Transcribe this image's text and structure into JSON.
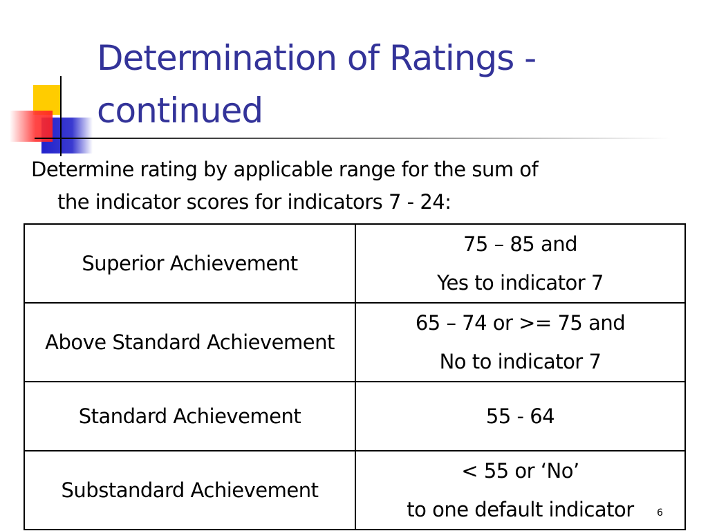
{
  "header": {
    "title_lines": [
      "Determination of Ratings -",
      "continued"
    ]
  },
  "body": {
    "intro_lines": [
      "Determine rating by applicable range for the sum of",
      "the indicator scores for indicators 7 - 24:"
    ]
  },
  "table": {
    "rows": [
      {
        "rating": "Superior Achievement",
        "range": [
          "75 – 85 and",
          "Yes to indicator 7"
        ]
      },
      {
        "rating": "Above Standard Achievement",
        "range": [
          "65 – 74 or >= 75 and",
          "No to indicator 7"
        ]
      },
      {
        "rating": "Standard Achievement",
        "range": [
          "55 - 64"
        ]
      },
      {
        "rating": "Substandard Achievement",
        "range": [
          "< 55 or ‘No’",
          "to one default indicator"
        ]
      }
    ]
  },
  "footer": {
    "page_number": "6"
  }
}
